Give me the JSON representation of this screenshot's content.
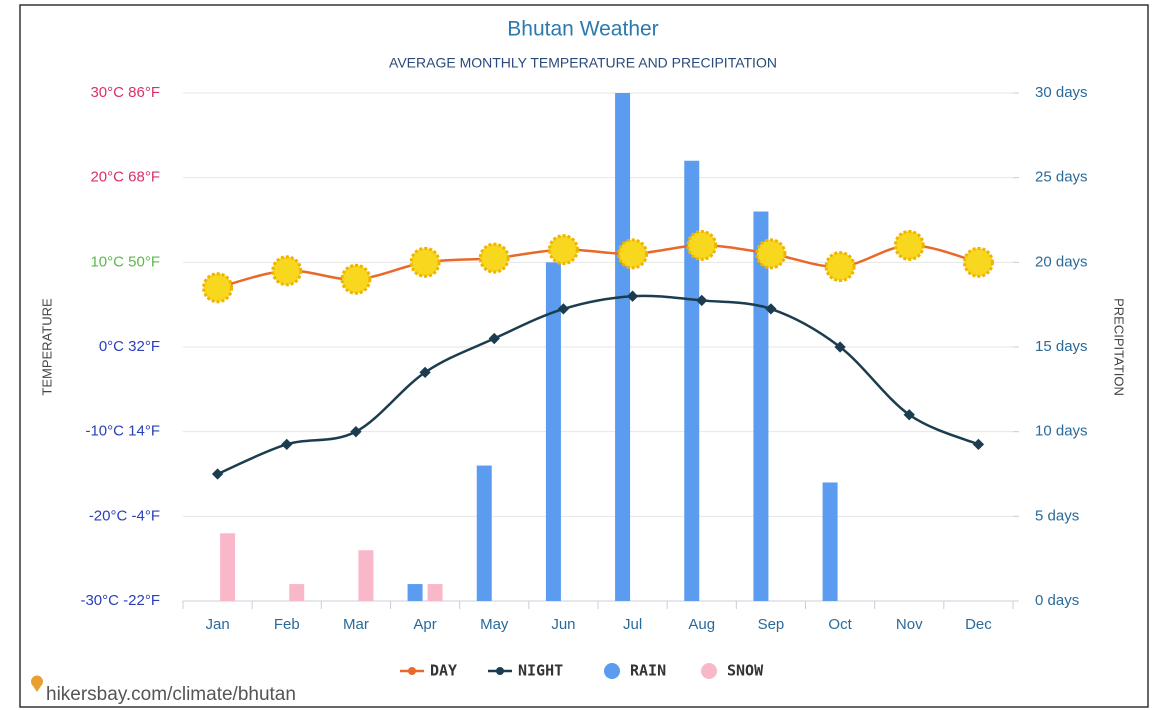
{
  "chart_data": {
    "type": "combo",
    "title": "Bhutan Weather",
    "subtitle": "AVERAGE MONTHLY TEMPERATURE AND PRECIPITATION",
    "ylabel": "TEMPERATURE",
    "y2label": "PRECIPITATION",
    "source": "hikersbay.com/climate/bhutan",
    "categories": [
      "Jan",
      "Feb",
      "Mar",
      "Apr",
      "May",
      "Jun",
      "Jul",
      "Aug",
      "Sep",
      "Oct",
      "Nov",
      "Dec"
    ],
    "ylim": [
      -30,
      30
    ],
    "yticks": [
      {
        "value": -30,
        "label": "-30°C -22°F"
      },
      {
        "value": -20,
        "label": "-20°C -4°F"
      },
      {
        "value": -10,
        "label": "-10°C 14°F"
      },
      {
        "value": 0,
        "label": "0°C 32°F"
      },
      {
        "value": 10,
        "label": "10°C 50°F"
      },
      {
        "value": 20,
        "label": "20°C 68°F"
      },
      {
        "value": 30,
        "label": "30°C 86°F"
      }
    ],
    "ytick_colors": [
      "#2a3fb8",
      "#2a3fb8",
      "#2a3fb8",
      "#2a3fb8",
      "#5cb84a",
      "#d8306a",
      "#d8306a"
    ],
    "y2lim": [
      0,
      30
    ],
    "y2ticks": [
      {
        "value": 0,
        "label": "0 days"
      },
      {
        "value": 5,
        "label": "5 days"
      },
      {
        "value": 10,
        "label": "10 days"
      },
      {
        "value": 15,
        "label": "15 days"
      },
      {
        "value": 20,
        "label": "20 days"
      },
      {
        "value": 25,
        "label": "25 days"
      },
      {
        "value": 30,
        "label": "30 days"
      }
    ],
    "grid": true,
    "series": [
      {
        "name": "DAY",
        "type": "line",
        "color": "#e8692a",
        "axis": "y",
        "values": [
          7,
          9,
          8,
          10,
          10.5,
          11.5,
          11,
          12,
          11,
          9.5,
          12,
          10
        ]
      },
      {
        "name": "NIGHT",
        "type": "line",
        "color": "#1c3d4f",
        "axis": "y",
        "values": [
          -15,
          -11.5,
          -10,
          -3,
          1,
          4.5,
          6,
          5.5,
          4.5,
          0,
          -8,
          -11.5
        ]
      },
      {
        "name": "RAIN",
        "type": "bar",
        "color": "#5b9bf0",
        "axis": "y2",
        "values": [
          0,
          0,
          0,
          1,
          8,
          20,
          30,
          26,
          23,
          7,
          0,
          0
        ]
      },
      {
        "name": "SNOW",
        "type": "bar",
        "color": "#f9b8c9",
        "axis": "y2",
        "values": [
          4,
          1,
          3,
          1,
          0,
          0,
          0,
          0,
          0,
          0,
          0,
          0
        ]
      }
    ]
  }
}
